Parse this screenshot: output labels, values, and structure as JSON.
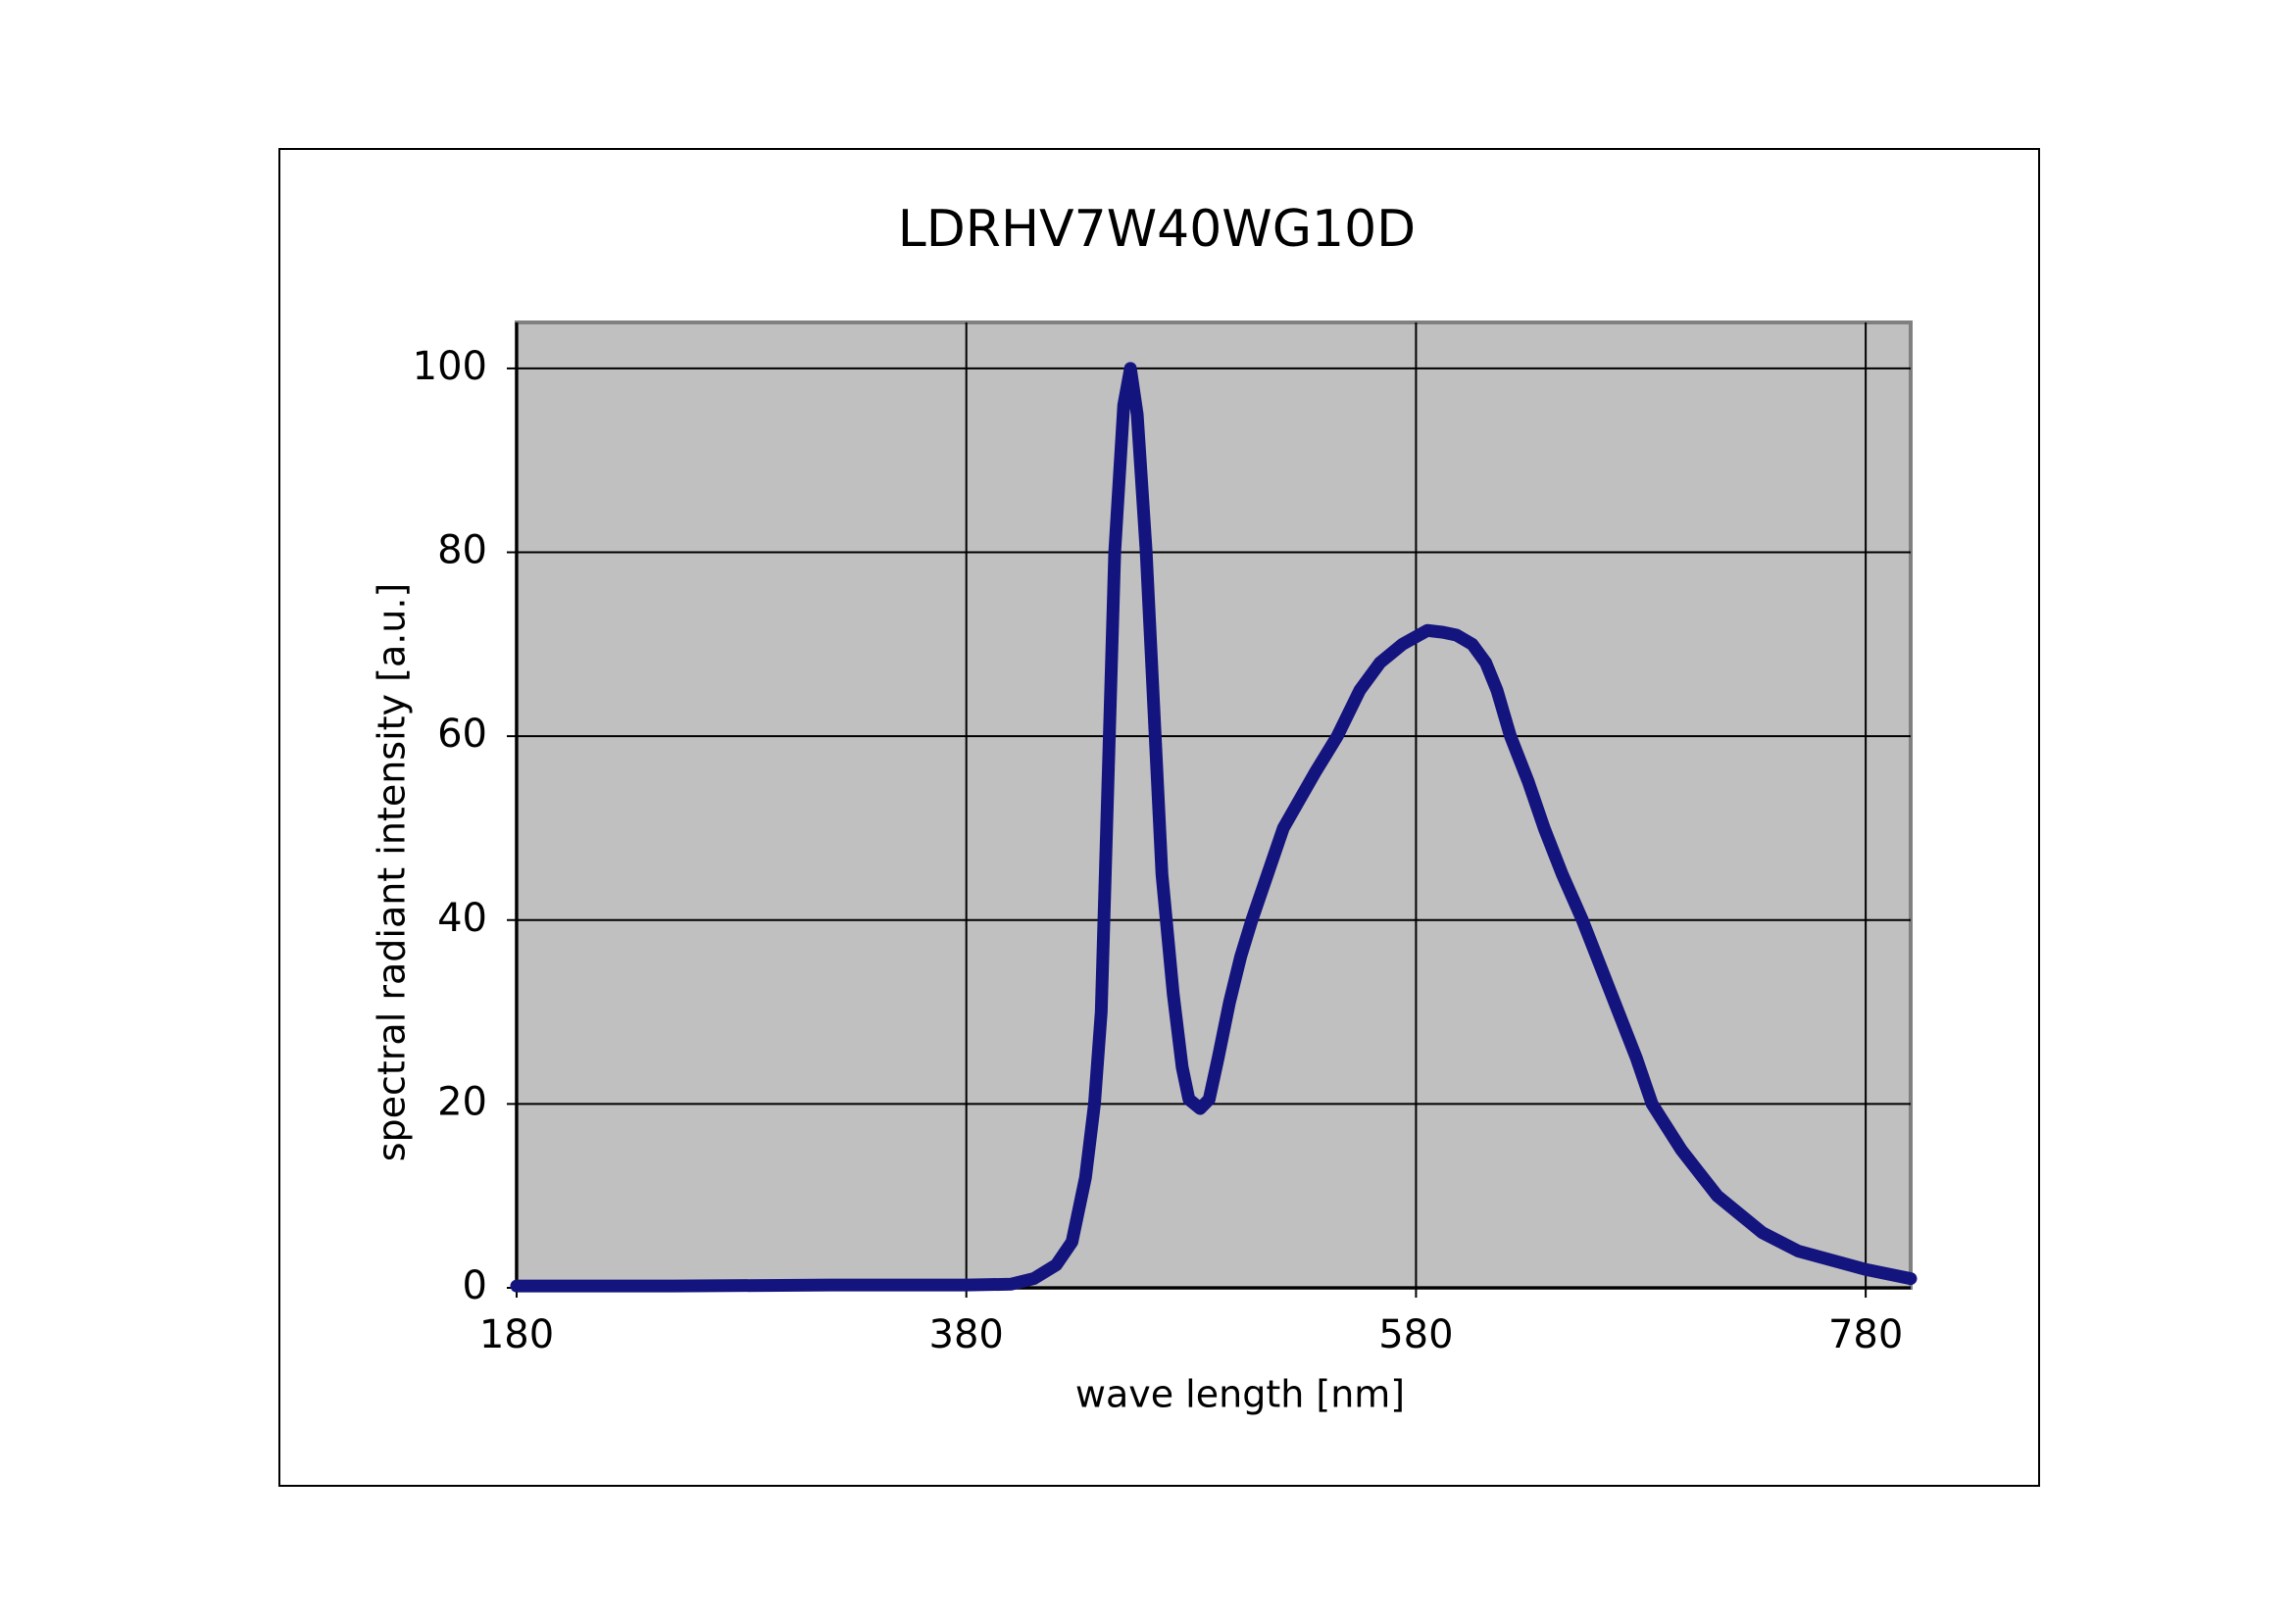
{
  "chart_data": {
    "type": "line",
    "title": "LDRHV7W40WG10D",
    "xlabel": "wave length [nm]",
    "ylabel": "spectral radiant intensity [a.u.]",
    "x": [
      180,
      250,
      320,
      380,
      400,
      410,
      420,
      427,
      433,
      437,
      440,
      443,
      446,
      450,
      453,
      456,
      460,
      464,
      467,
      472,
      476,
      479,
      484,
      488,
      492,
      497,
      502,
      507,
      514,
      521,
      528,
      535,
      545,
      555,
      564,
      574,
      585,
      592,
      598,
      605,
      611,
      616,
      622,
      630,
      637,
      645,
      654,
      662,
      670,
      678,
      685,
      698,
      706,
      714,
      724,
      734,
      750,
      765,
      780,
      800
    ],
    "series": [
      {
        "name": "spectrum",
        "color": "#14147f",
        "values": [
          0.2,
          0.2,
          0.3,
          0.3,
          0.4,
          1,
          2.5,
          5,
          12,
          20,
          30,
          55,
          80,
          96,
          100,
          95,
          80,
          60,
          45,
          32,
          24,
          20.5,
          19.5,
          20.5,
          25,
          31,
          36,
          40,
          45,
          50,
          53,
          56,
          60,
          65,
          68,
          70,
          71.5,
          71.3,
          71,
          70,
          68,
          65,
          60,
          55,
          50,
          45,
          40,
          35,
          30,
          25,
          20,
          15,
          12.5,
          10,
          8,
          6,
          4,
          3,
          2,
          1
        ]
      }
    ],
    "xlim": [
      180,
      800
    ],
    "ylim": [
      0,
      105
    ],
    "xticks": [
      180,
      380,
      580,
      780
    ],
    "yticks": [
      0,
      20,
      40,
      60,
      80,
      100
    ],
    "grid": true
  }
}
